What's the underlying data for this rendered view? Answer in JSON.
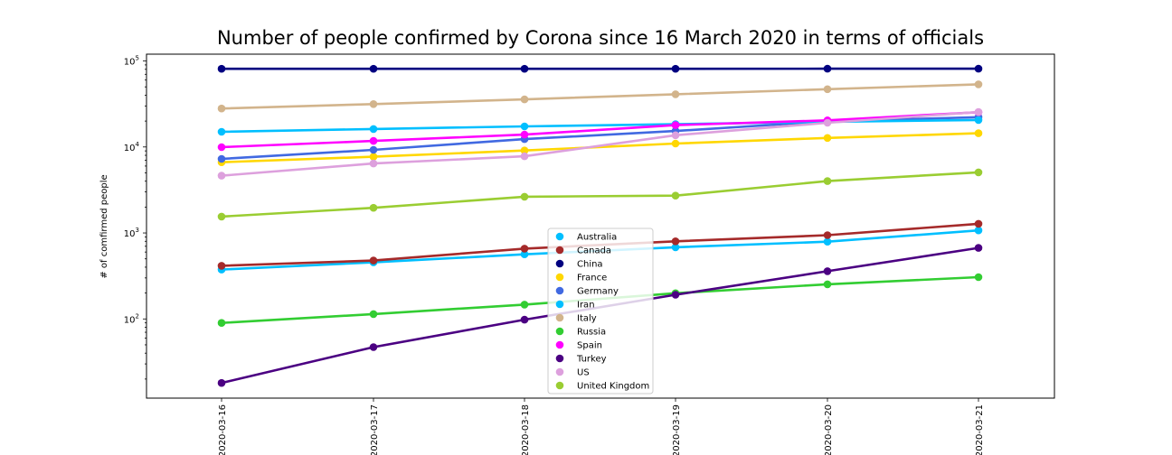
{
  "chart_data": {
    "type": "line",
    "title": "Number of people confirmed by Corona since 16 March 2020 in terms of officials",
    "xlabel": "",
    "ylabel": "# of comfirmed people",
    "yscale": "log",
    "ylim": [
      12,
      120000
    ],
    "y_ticks": [
      {
        "value": 100,
        "base": "10",
        "exp": "2"
      },
      {
        "value": 1000,
        "base": "10",
        "exp": "3"
      },
      {
        "value": 10000,
        "base": "10",
        "exp": "4"
      },
      {
        "value": 100000,
        "base": "10",
        "exp": "5"
      }
    ],
    "x": [
      "2020-03-16",
      "2020-03-17",
      "2020-03-18",
      "2020-03-19",
      "2020-03-20",
      "2020-03-21"
    ],
    "legend_position": "center",
    "grid": false,
    "series": [
      {
        "name": "Australia",
        "color": "#00bfff",
        "values": [
          375,
          455,
          565,
          681,
          791,
          1071
        ]
      },
      {
        "name": "Canada",
        "color": "#a52a2a",
        "values": [
          415,
          478,
          657,
          800,
          943,
          1277
        ]
      },
      {
        "name": "China",
        "color": "#000080",
        "values": [
          81033,
          81058,
          81102,
          81156,
          81250,
          81305
        ]
      },
      {
        "name": "France",
        "color": "#ffd700",
        "values": [
          6650,
          7699,
          9105,
          10947,
          12726,
          14431
        ]
      },
      {
        "name": "Germany",
        "color": "#4169e1",
        "values": [
          7272,
          9257,
          12327,
          15320,
          19848,
          22213
        ]
      },
      {
        "name": "Iran",
        "color": "#00bfff",
        "values": [
          14991,
          16169,
          17361,
          18407,
          19644,
          20610
        ]
      },
      {
        "name": "Italy",
        "color": "#d2b48c",
        "values": [
          27980,
          31506,
          35713,
          41035,
          47021,
          53578
        ]
      },
      {
        "name": "Russia",
        "color": "#32cd32",
        "values": [
          90,
          114,
          147,
          199,
          253,
          306
        ]
      },
      {
        "name": "Spain",
        "color": "#ff00ff",
        "values": [
          9942,
          11748,
          13910,
          17963,
          20410,
          25374
        ]
      },
      {
        "name": "Turkey",
        "color": "#4b0082",
        "values": [
          18,
          47,
          98,
          191,
          359,
          670
        ]
      },
      {
        "name": "US",
        "color": "#dda0dd",
        "values": [
          4632,
          6421,
          7786,
          13680,
          19101,
          25493
        ]
      },
      {
        "name": "United Kingdom",
        "color": "#9acd32",
        "values": [
          1551,
          1960,
          2642,
          2716,
          4014,
          5067
        ]
      }
    ]
  }
}
